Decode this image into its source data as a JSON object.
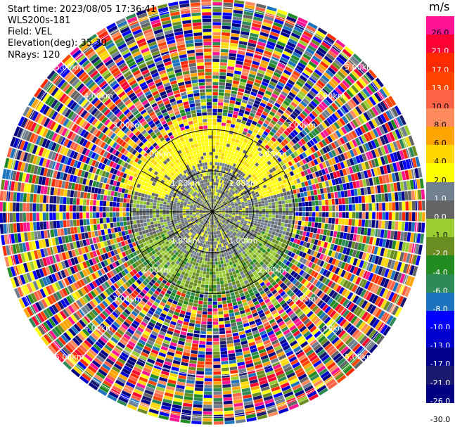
{
  "header": {
    "start_time": "Start time: 2023/08/05 17:36:41",
    "instrument": "WLS200s-181",
    "field": "Field: VEL",
    "elevation": "Elevation(deg): 35.30",
    "nrays": "NRays: 120"
  },
  "colorbar": {
    "unit": "m/s",
    "levels": [
      {
        "label": "26.0",
        "color": "#ff1493"
      },
      {
        "label": "21.0",
        "color": "#ff0033"
      },
      {
        "label": "17.0",
        "color": "#ff2a00"
      },
      {
        "label": "13.0",
        "color": "#ff4500"
      },
      {
        "label": "10.0",
        "color": "#ff6347"
      },
      {
        "label": "8.0",
        "color": "#ff8a5c"
      },
      {
        "label": "6.0",
        "color": "#ffa500"
      },
      {
        "label": "4.0",
        "color": "#ffd700"
      },
      {
        "label": "2.0",
        "color": "#ffff00"
      },
      {
        "label": "1.0",
        "color": "#708090"
      },
      {
        "label": "0.0",
        "color": "#646464"
      },
      {
        "label": "-1.0",
        "color": "#9acd32"
      },
      {
        "label": "-2.0",
        "color": "#6b8e23"
      },
      {
        "label": "-4.0",
        "color": "#228b22"
      },
      {
        "label": "-6.0",
        "color": "#2e8b57"
      },
      {
        "label": "-8.0",
        "color": "#1e73be"
      },
      {
        "label": "-10.0",
        "color": "#0000ff"
      },
      {
        "label": "-13.0",
        "color": "#0000cd"
      },
      {
        "label": "-17.0",
        "color": "#00008b"
      },
      {
        "label": "-21.0",
        "color": "#191970"
      },
      {
        "label": "-26.0",
        "color": "#000080"
      },
      {
        "label": "-30.0",
        "color": "#ffffff"
      }
    ]
  },
  "chart_data": {
    "type": "heatmap",
    "projection": "polar PPI",
    "field": "VEL",
    "units": "m/s",
    "n_rays": 120,
    "range_rings_km": [
      1.0,
      2.0,
      3.0,
      4.0,
      5.0
    ],
    "ring_labels": [
      "1.00km",
      "2.00km",
      "3.00km",
      "4.00km",
      "5.00km"
    ],
    "azimuth_spokes_deg": [
      0,
      30,
      60,
      90,
      120,
      150,
      180,
      210,
      240,
      270,
      300,
      330
    ],
    "max_range_km": 5.2,
    "pattern": {
      "inner_km": [
        0,
        1.0
      ],
      "inner_values": "mixed near 0 m/s",
      "north_sector_1_2_km": "2 to 4 m/s",
      "south_sector_1_2_km": "-1 to -6 m/s",
      "beyond_2_km": "noisy, full scale"
    }
  }
}
